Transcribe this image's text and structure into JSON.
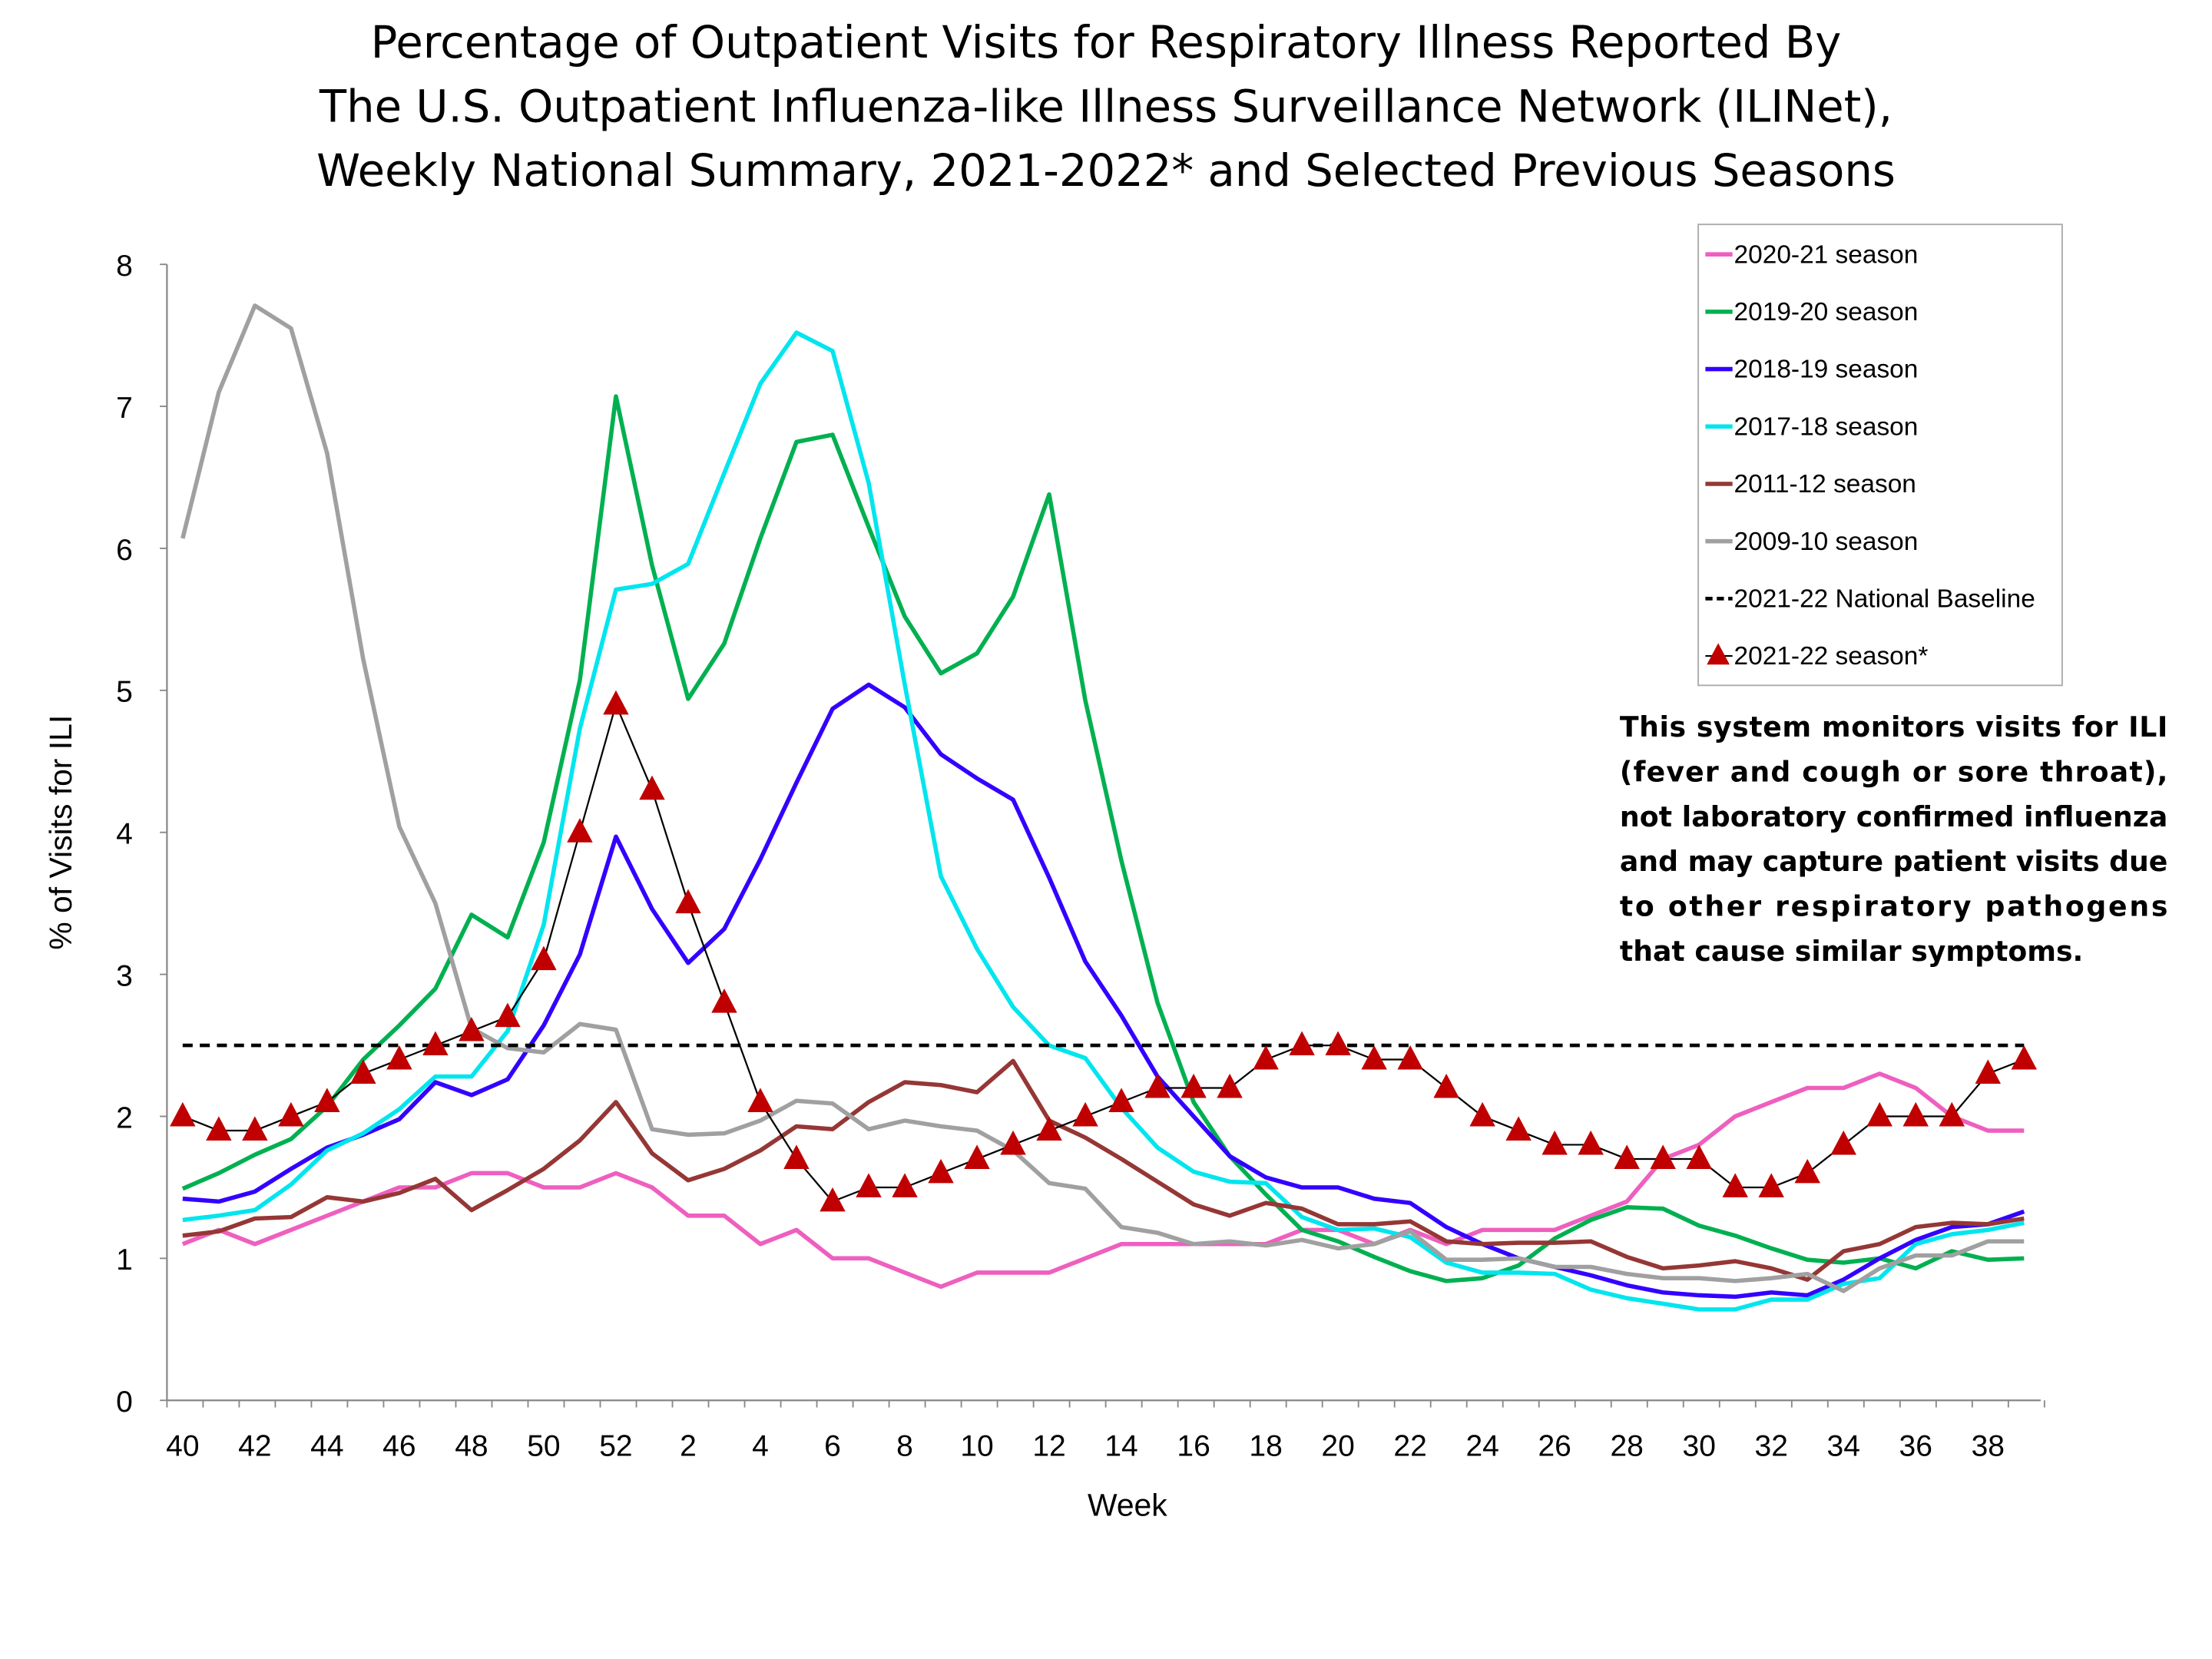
{
  "chart_data": {
    "type": "line",
    "title": [
      "Percentage of Outpatient Visits for Respiratory Illness Reported By",
      "The U.S. Outpatient Influenza-like Illness Surveillance Network (ILINet),",
      "Weekly National Summary, 2021-2022* and Selected Previous Seasons"
    ],
    "xlabel": "Week",
    "ylabel": "% of Visits for ILI",
    "ylim": [
      0,
      8
    ],
    "yticks": [
      "0",
      "1",
      "2",
      "3",
      "4",
      "5",
      "6",
      "7",
      "8"
    ],
    "x": [
      40,
      41,
      42,
      43,
      44,
      45,
      46,
      47,
      48,
      49,
      50,
      51,
      52,
      1,
      2,
      3,
      4,
      5,
      6,
      7,
      8,
      9,
      10,
      11,
      12,
      13,
      14,
      15,
      16,
      17,
      18,
      19,
      20,
      21,
      22,
      23,
      24,
      25,
      26,
      27,
      28,
      29,
      30,
      31,
      32,
      33,
      34,
      35,
      36,
      37,
      38,
      39
    ],
    "xtick_labels": [
      "40",
      "42",
      "44",
      "46",
      "48",
      "50",
      "52",
      "2",
      "4",
      "6",
      "8",
      "10",
      "12",
      "14",
      "16",
      "18",
      "20",
      "22",
      "24",
      "26",
      "28",
      "30",
      "32",
      "34",
      "36",
      "38"
    ],
    "legend_position": "top-right",
    "grid": false,
    "series": [
      {
        "name": "2020-21 season",
        "color": "#ee5fbf",
        "values": [
          1.1,
          1.2,
          1.1,
          1.2,
          1.3,
          1.4,
          1.5,
          1.5,
          1.6,
          1.6,
          1.5,
          1.5,
          1.6,
          1.5,
          1.3,
          1.3,
          1.1,
          1.2,
          1.0,
          1.0,
          0.9,
          0.8,
          0.9,
          0.9,
          0.9,
          1.0,
          1.1,
          1.1,
          1.1,
          1.1,
          1.1,
          1.2,
          1.2,
          1.1,
          1.2,
          1.1,
          1.2,
          1.2,
          1.2,
          1.3,
          1.4,
          1.7,
          1.8,
          2.0,
          2.1,
          2.2,
          2.2,
          2.3,
          2.2,
          2.0,
          1.9,
          1.9
        ]
      },
      {
        "name": "2019-20 season",
        "color": "#00b050",
        "values": [
          1.49,
          1.6,
          1.73,
          1.84,
          2.07,
          2.4,
          2.64,
          2.9,
          3.42,
          3.26,
          3.93,
          5.07,
          7.07,
          5.88,
          4.94,
          5.33,
          6.07,
          6.75,
          6.8,
          6.15,
          5.52,
          5.12,
          5.26,
          5.66,
          6.38,
          4.93,
          3.8,
          2.8,
          2.1,
          1.72,
          1.45,
          1.2,
          1.12,
          1.01,
          0.91,
          0.84,
          0.86,
          0.95,
          1.14,
          1.27,
          1.36,
          1.35,
          1.23,
          1.16,
          1.07,
          0.99,
          0.97,
          1.0,
          0.93,
          1.05,
          0.99,
          1.0
        ]
      },
      {
        "name": "2018-19 season",
        "color": "#3300ff",
        "values": [
          1.42,
          1.4,
          1.47,
          1.63,
          1.78,
          1.87,
          1.98,
          2.24,
          2.15,
          2.26,
          2.64,
          3.14,
          3.97,
          3.46,
          3.08,
          3.32,
          3.81,
          4.35,
          4.87,
          5.04,
          4.88,
          4.55,
          4.38,
          4.23,
          3.68,
          3.09,
          2.71,
          2.28,
          2.0,
          1.72,
          1.57,
          1.5,
          1.5,
          1.42,
          1.39,
          1.22,
          1.1,
          1.0,
          0.94,
          0.88,
          0.81,
          0.76,
          0.74,
          0.73,
          0.76,
          0.74,
          0.85,
          1.0,
          1.13,
          1.22,
          1.24,
          1.33
        ]
      },
      {
        "name": "2017-18 season",
        "color": "#00e5ee",
        "values": [
          1.27,
          1.3,
          1.34,
          1.52,
          1.76,
          1.88,
          2.05,
          2.28,
          2.28,
          2.6,
          3.35,
          4.73,
          5.71,
          5.75,
          5.89,
          6.53,
          7.16,
          7.52,
          7.39,
          6.46,
          5.04,
          3.69,
          3.18,
          2.77,
          2.5,
          2.41,
          2.06,
          1.78,
          1.61,
          1.54,
          1.53,
          1.29,
          1.2,
          1.21,
          1.15,
          0.97,
          0.9,
          0.9,
          0.89,
          0.78,
          0.72,
          0.68,
          0.64,
          0.64,
          0.71,
          0.71,
          0.82,
          0.86,
          1.1,
          1.17,
          1.2,
          1.25
        ]
      },
      {
        "name": "2011-12 season",
        "color": "#953735",
        "values": [
          1.16,
          1.19,
          1.28,
          1.29,
          1.43,
          1.4,
          1.46,
          1.56,
          1.34,
          1.48,
          1.63,
          1.83,
          2.1,
          1.74,
          1.55,
          1.63,
          1.76,
          1.93,
          1.91,
          2.1,
          2.24,
          2.22,
          2.17,
          2.39,
          1.97,
          1.85,
          1.7,
          1.54,
          1.38,
          1.3,
          1.39,
          1.35,
          1.24,
          1.24,
          1.26,
          1.12,
          1.1,
          1.11,
          1.11,
          1.12,
          1.01,
          0.93,
          0.95,
          0.98,
          0.93,
          0.85,
          1.05,
          1.1,
          1.22,
          1.25,
          1.24,
          1.28
        ]
      },
      {
        "name": "2009-10 season",
        "color": "#a0a0a0",
        "values": [
          6.07,
          7.1,
          7.71,
          7.55,
          6.67,
          5.22,
          4.04,
          3.5,
          2.62,
          2.48,
          2.45,
          2.65,
          2.61,
          1.91,
          1.87,
          1.88,
          1.97,
          2.11,
          2.09,
          1.91,
          1.97,
          1.93,
          1.9,
          1.76,
          1.53,
          1.49,
          1.22,
          1.18,
          1.1,
          1.12,
          1.09,
          1.13,
          1.07,
          1.1,
          1.19,
          0.99,
          0.99,
          1.0,
          0.94,
          0.94,
          0.89,
          0.86,
          0.86,
          0.84,
          0.86,
          0.89,
          0.77,
          0.93,
          1.02,
          1.02,
          1.12,
          1.12
        ]
      },
      {
        "name": "2021-22 National Baseline",
        "color": "#000000",
        "style": "dashed",
        "values": [
          2.5,
          2.5,
          2.5,
          2.5,
          2.5,
          2.5,
          2.5,
          2.5,
          2.5,
          2.5,
          2.5,
          2.5,
          2.5,
          2.5,
          2.5,
          2.5,
          2.5,
          2.5,
          2.5,
          2.5,
          2.5,
          2.5,
          2.5,
          2.5,
          2.5,
          2.5,
          2.5,
          2.5,
          2.5,
          2.5,
          2.5,
          2.5,
          2.5,
          2.5,
          2.5,
          2.5,
          2.5,
          2.5,
          2.5,
          2.5,
          2.5,
          2.5,
          2.5,
          2.5,
          2.5,
          2.5,
          2.5,
          2.5,
          2.5,
          2.5,
          2.5,
          2.5
        ]
      },
      {
        "name": "2021-22 season*",
        "color": "#000000",
        "marker": "triangle",
        "marker_color": "#c00000",
        "values": [
          2.0,
          1.9,
          1.9,
          2.0,
          2.1,
          2.3,
          2.4,
          2.5,
          2.6,
          2.7,
          3.1,
          4.0,
          4.9,
          4.3,
          3.5,
          2.8,
          2.1,
          1.7,
          1.4,
          1.5,
          1.5,
          1.6,
          1.7,
          1.8,
          1.9,
          2.0,
          2.1,
          2.2,
          2.2,
          2.2,
          2.4,
          2.5,
          2.5,
          2.4,
          2.4,
          2.2,
          2.0,
          1.9,
          1.8,
          1.8,
          1.7,
          1.7,
          1.7,
          1.5,
          1.5,
          1.6,
          1.8,
          2.0,
          2.0,
          2.0,
          2.3,
          2.4
        ]
      }
    ],
    "annotation": [
      "This system monitors visits for ILI",
      "(fever and cough or sore throat),",
      "not laboratory confirmed influenza",
      "and may capture patient visits due",
      "to other respiratory pathogens",
      "that cause similar symptoms."
    ]
  }
}
